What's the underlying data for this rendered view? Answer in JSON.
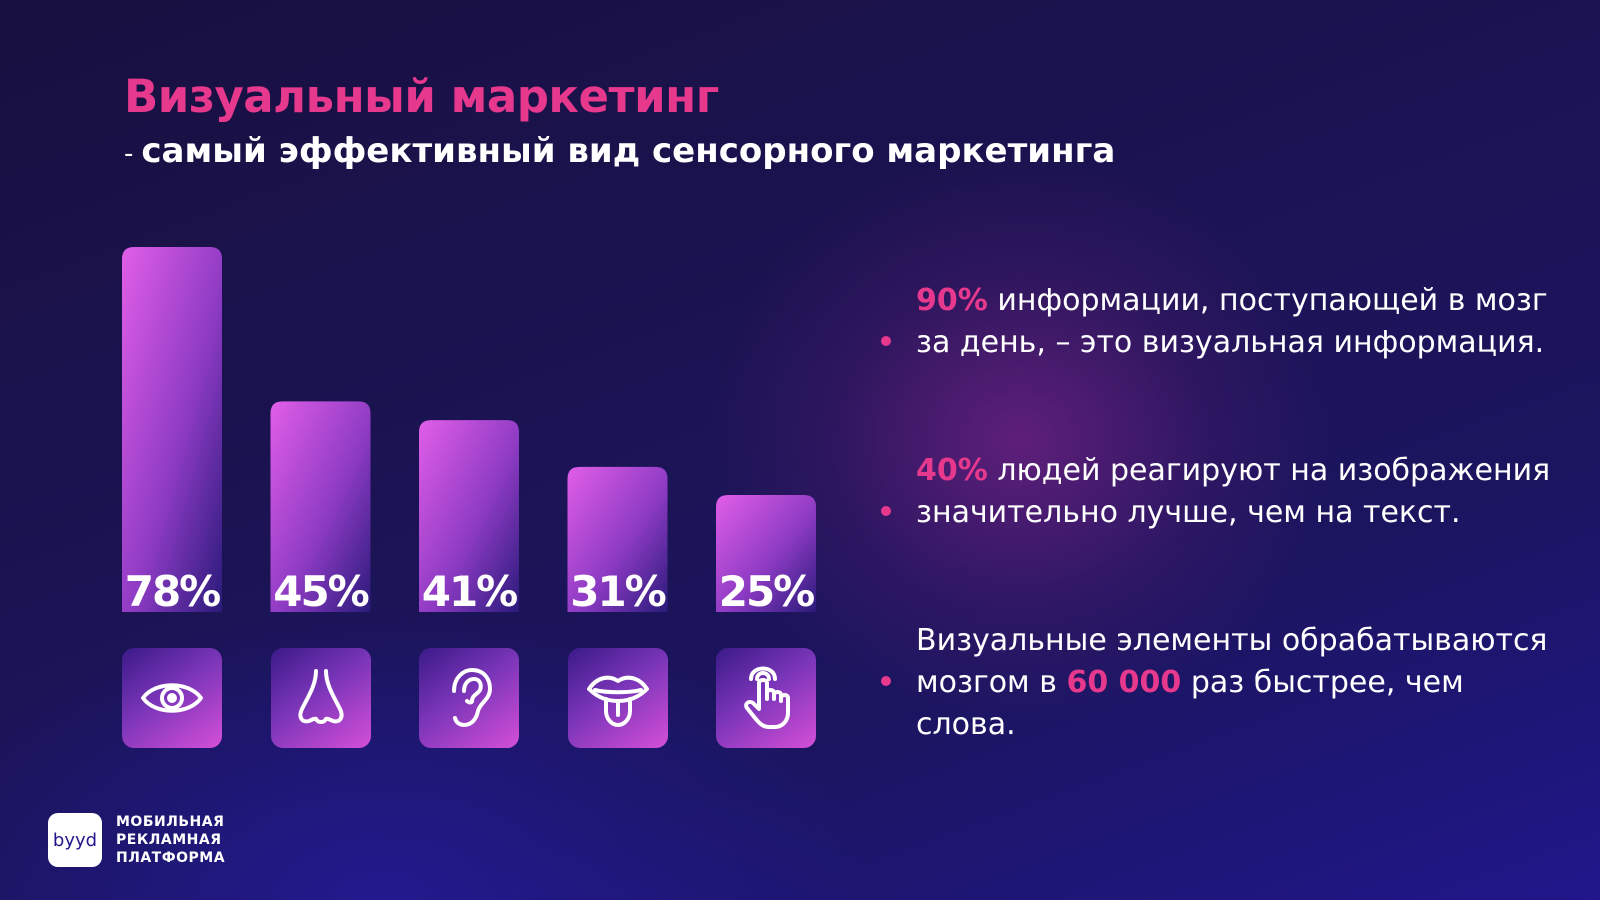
{
  "header": {
    "title": "Визуальный маркетинг",
    "subtitle_dash": "-",
    "subtitle": "самый эффективный вид сенсорного маркетинга"
  },
  "chart_data": {
    "type": "bar",
    "categories": [
      "sight",
      "smell",
      "hearing",
      "taste",
      "touch"
    ],
    "values": [
      78,
      45,
      41,
      31,
      25
    ],
    "labels": [
      "78%",
      "45%",
      "41%",
      "31%",
      "25%"
    ],
    "icons": [
      "eye-icon",
      "nose-icon",
      "ear-icon",
      "tongue-icon",
      "hand-pointer-icon"
    ],
    "title": "",
    "xlabel": "",
    "ylabel": "",
    "ylim": [
      0,
      78
    ],
    "bar_gradient": [
      "#e15ee8",
      "#2a1a7a"
    ],
    "legend": "none",
    "grid": false
  },
  "facts": [
    {
      "highlight": "90%",
      "text": " информации, поступающей в мозг за день, – это визуальная информация."
    },
    {
      "highlight": "40%",
      "text": " людей реагируют на изображения значительно лучше, чем на текст."
    },
    {
      "text_before": "Визуальные элементы обрабатываются мозгом в ",
      "highlight": "60 000",
      "text_after": " раз быстрее, чем слова."
    }
  ],
  "brand": {
    "logo": "byyd",
    "lines": [
      "МОБИЛЬНАЯ",
      "РЕКЛАМНАЯ",
      "ПЛАТФОРМА"
    ]
  },
  "colors": {
    "accent": "#e6388d",
    "background": "#1b1352",
    "bar_top": "#e15ee8"
  }
}
